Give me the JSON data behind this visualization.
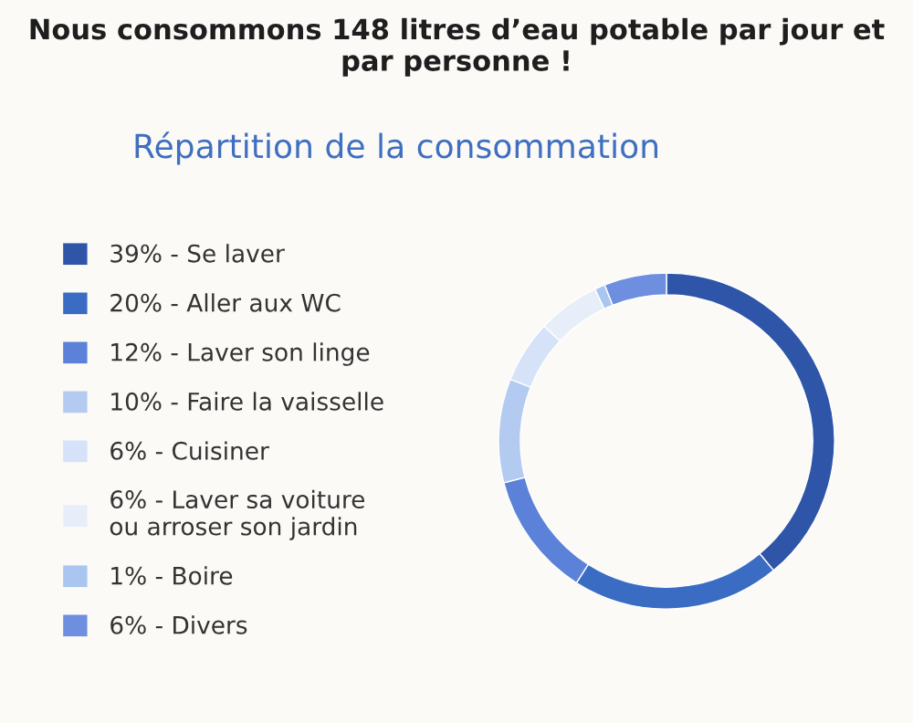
{
  "chart_data": {
    "type": "donut",
    "title": "Nous consommons 148 litres d’eau potable par jour et par personne !",
    "subtitle": "Répartition de la consommation",
    "categories": [
      "39% - Se laver",
      "20% - Aller aux WC",
      "12% - Laver son linge",
      "10% - Faire la vaisselle",
      "6% - Cuisiner",
      "6% - Laver sa voiture\nou arroser son jardin",
      "1% - Boire",
      "6% - Divers"
    ],
    "values": [
      39,
      20,
      12,
      10,
      6,
      6,
      1,
      6
    ],
    "colors": [
      "#2f55a8",
      "#3a6cc4",
      "#5b82d8",
      "#b3cbf0",
      "#d5e2f7",
      "#e8eef9",
      "#a9c5f0",
      "#6e8fe0"
    ],
    "legend": "left"
  }
}
